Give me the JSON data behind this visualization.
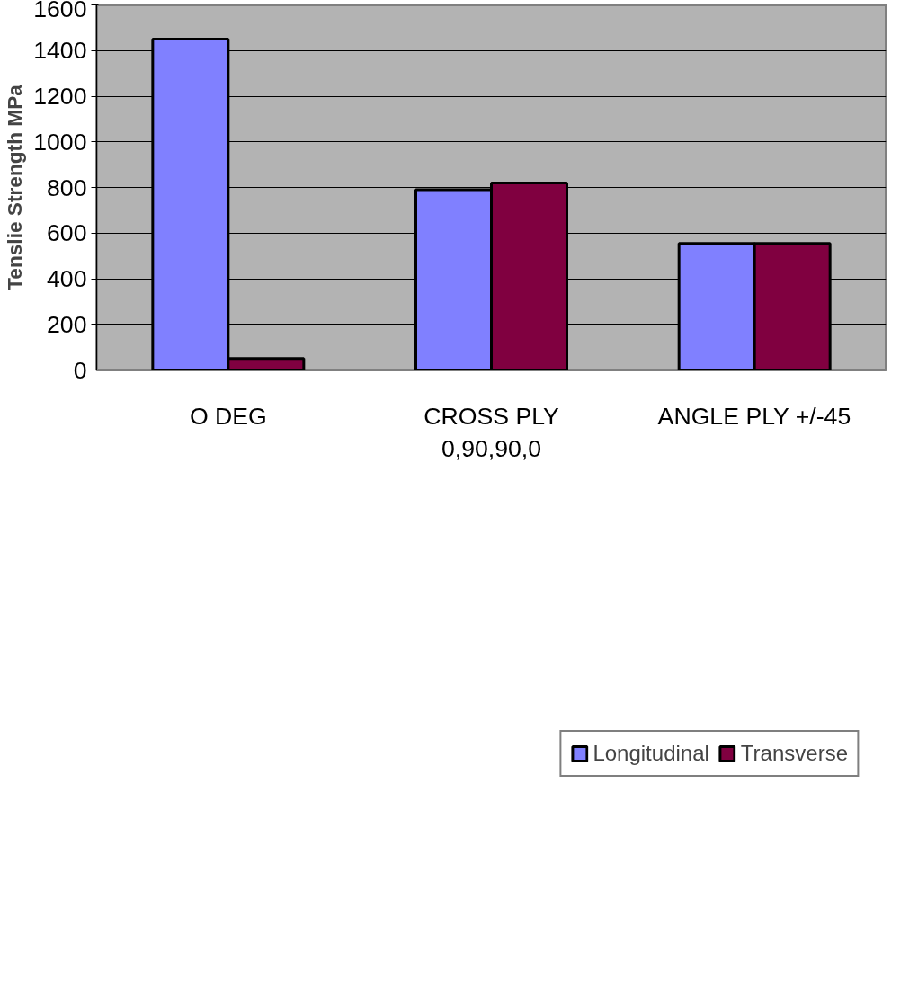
{
  "chart_data": {
    "type": "bar",
    "ylabel": "Tenslie Strength MPa",
    "categories": [
      "O DEG",
      "CROSS PLY\n0,90,90,0",
      "ANGLE PLY +/-45"
    ],
    "series": [
      {
        "name": "Longitudinal",
        "color": "#8080ff",
        "values": [
          1450,
          790,
          555
        ]
      },
      {
        "name": "Transverse",
        "color": "#800040",
        "values": [
          50,
          820,
          555
        ]
      }
    ],
    "ylim": [
      0,
      1600
    ],
    "yticks": [
      0,
      200,
      400,
      600,
      800,
      1000,
      1200,
      1400,
      1600
    ],
    "grid": "y",
    "legend": "bottom"
  }
}
